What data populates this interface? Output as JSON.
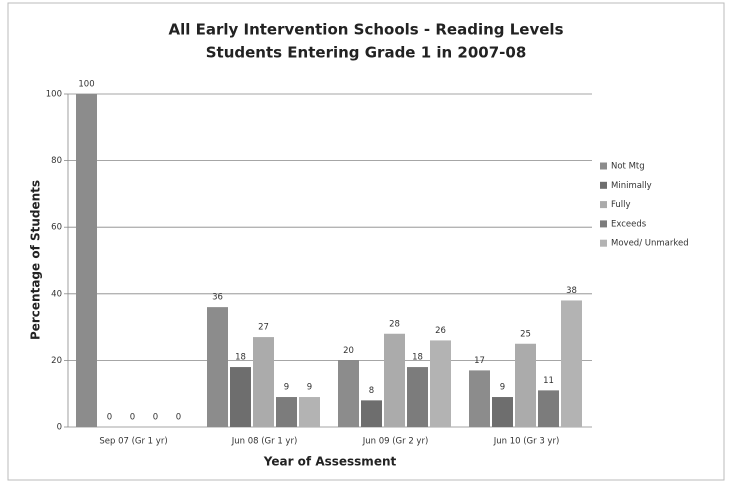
{
  "chart_data": {
    "type": "bar",
    "title": "All Early Intervention Schools - Reading Levels",
    "subtitle": "Students Entering Grade 1 in 2007-08",
    "x_label": "Year of Assessment",
    "y_label": "Percentage of Students",
    "categories": [
      "Sep 07 (Gr 1 yr)",
      "Jun 08 (Gr 1 yr)",
      "Jun 09 (Gr 2 yr)",
      "Jun 10 (Gr 3 yr)"
    ],
    "series": [
      {
        "name": "Not Mtg",
        "color": "#8c8c8c",
        "values": [
          100,
          36,
          20,
          17
        ]
      },
      {
        "name": "Minimally",
        "color": "#6e6e6e",
        "values": [
          0,
          18,
          8,
          9
        ]
      },
      {
        "name": "Fully",
        "color": "#ababab",
        "values": [
          0,
          27,
          28,
          25
        ]
      },
      {
        "name": "Exceeds",
        "color": "#7c7c7c",
        "values": [
          0,
          9,
          18,
          11
        ]
      },
      {
        "name": "Moved/ Unmarked",
        "color": "#b3b3b3",
        "values": [
          0,
          9,
          26,
          38
        ]
      }
    ],
    "ylim": [
      0,
      100
    ],
    "yticks": [
      0,
      20,
      40,
      60,
      80,
      100
    ],
    "grid": true,
    "legend": "right"
  }
}
